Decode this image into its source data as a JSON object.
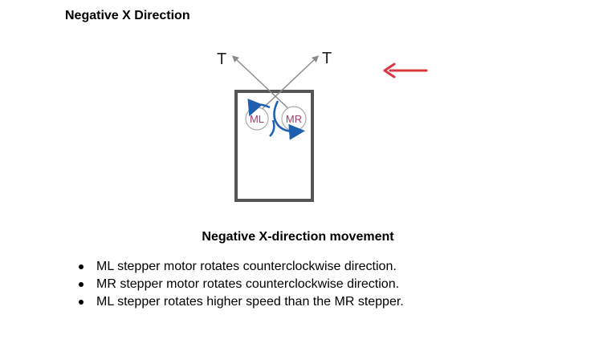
{
  "heading": "Negative X Direction",
  "diagram": {
    "tension_left_label": "T",
    "tension_right_label": "T",
    "motor_left_label": "ML",
    "motor_right_label": "MR",
    "direction_arrow_icon": "arrow-left-icon",
    "colors": {
      "frame": "#555555",
      "cable": "#8a8a8a",
      "motor_outline": "#aaaaaa",
      "motor_label": "#9b3f6b",
      "rotation_arrow": "#1f5fb0",
      "direction_arrow": "#d9363e"
    }
  },
  "caption": "Negative X-direction movement",
  "bullets": [
    "ML stepper motor rotates counterclockwise direction.",
    "MR stepper motor rotates counterclockwise direction.",
    "ML stepper rotates higher speed than the MR stepper."
  ]
}
